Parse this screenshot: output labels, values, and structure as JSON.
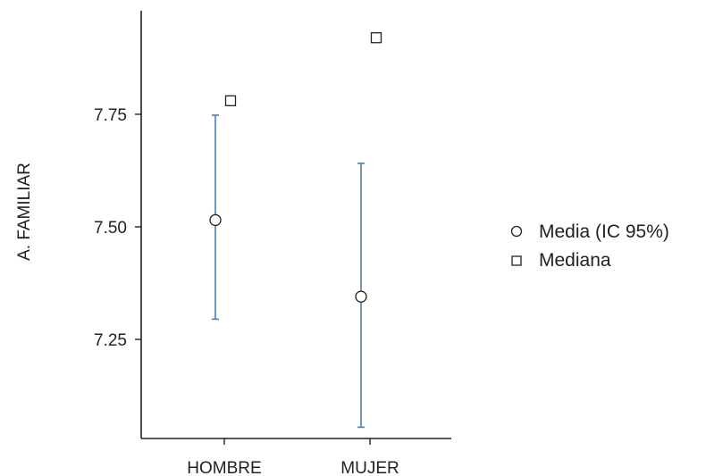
{
  "chart_data": {
    "type": "scatter",
    "xlabel": "",
    "ylabel": "A. FAMILIAR",
    "categories": [
      "HOMBRE",
      "MUJER"
    ],
    "ylim": [
      7.03,
      7.98
    ],
    "yticks": [
      7.25,
      7.5,
      7.75
    ],
    "ytick_labels": [
      "7.25",
      "7.50",
      "7.75"
    ],
    "series": [
      {
        "name": "Media (IC 95%)",
        "marker": "circle",
        "mean": [
          7.515,
          7.345
        ],
        "ci_low": [
          7.295,
          7.055
        ],
        "ci_high": [
          7.748,
          7.641
        ]
      },
      {
        "name": "Mediana",
        "marker": "square",
        "values": [
          7.78,
          7.92
        ]
      }
    ],
    "errorbar_color": "#4a7fb5",
    "grid": false,
    "legend_position": "right"
  }
}
